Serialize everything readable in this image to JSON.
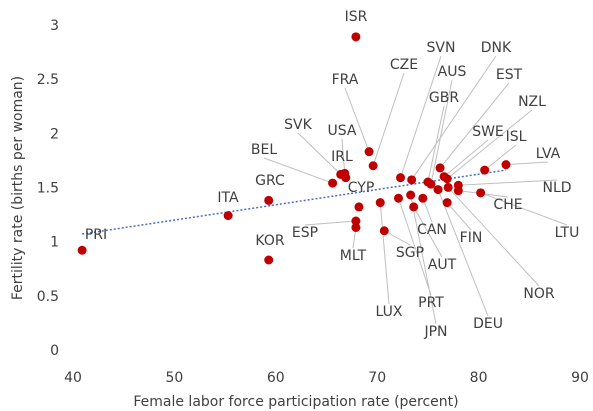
{
  "chart_data": {
    "type": "scatter",
    "x_label": "Female labor force participation rate (percent)",
    "y_label": "Fertility rate (births per woman)",
    "color": "#c00000",
    "labels": [
      "PRI",
      "ITA",
      "GRC",
      "KOR",
      "ISR",
      "FRA",
      "CZE",
      "SVN",
      "DNK",
      "AUS",
      "EST",
      "GBR",
      "NZL",
      "SWE",
      "ISL",
      "LVA",
      "SVK",
      "USA",
      "BEL",
      "IRL",
      "CYP",
      "NLD",
      "CHE",
      "LTU",
      "ESP",
      "MLT",
      "LUX",
      "SGP",
      "PRT",
      "JPN",
      "AUT",
      "CAN",
      "FIN",
      "DEU",
      "NOR"
    ],
    "x": [
      40.9,
      55.3,
      59.3,
      59.3,
      67.9,
      69.2,
      69.6,
      72.3,
      73.4,
      75.3,
      76.2,
      75.0,
      76.9,
      76.6,
      80.6,
      82.7,
      66.4,
      66.8,
      65.6,
      66.9,
      68.2,
      78.0,
      78.0,
      80.2,
      67.9,
      67.9,
      70.3,
      70.7,
      72.1,
      73.3,
      73.6,
      74.5,
      76.9,
      76.0,
      77.0
    ],
    "values": [
      0.93,
      1.25,
      1.39,
      0.84,
      2.9,
      1.84,
      1.71,
      1.6,
      1.58,
      1.54,
      1.69,
      1.56,
      1.59,
      1.61,
      1.67,
      1.72,
      1.63,
      1.64,
      1.55,
      1.6,
      1.33,
      1.53,
      1.48,
      1.46,
      1.2,
      1.14,
      1.37,
      1.11,
      1.41,
      1.44,
      1.33,
      1.41,
      1.37,
      1.49,
      1.51
    ],
    "trendline": {
      "color": "#4472c4",
      "x": [
        40.9,
        82.7
      ],
      "values": [
        1.08,
        1.67
      ]
    },
    "xlim": [
      40,
      90
    ],
    "xticks": [
      40,
      50,
      60,
      70,
      80,
      90
    ],
    "ylim": [
      0,
      3
    ],
    "yticks": [
      0,
      0.5,
      1,
      1.5,
      2,
      2.5,
      3
    ],
    "grid": false
  }
}
